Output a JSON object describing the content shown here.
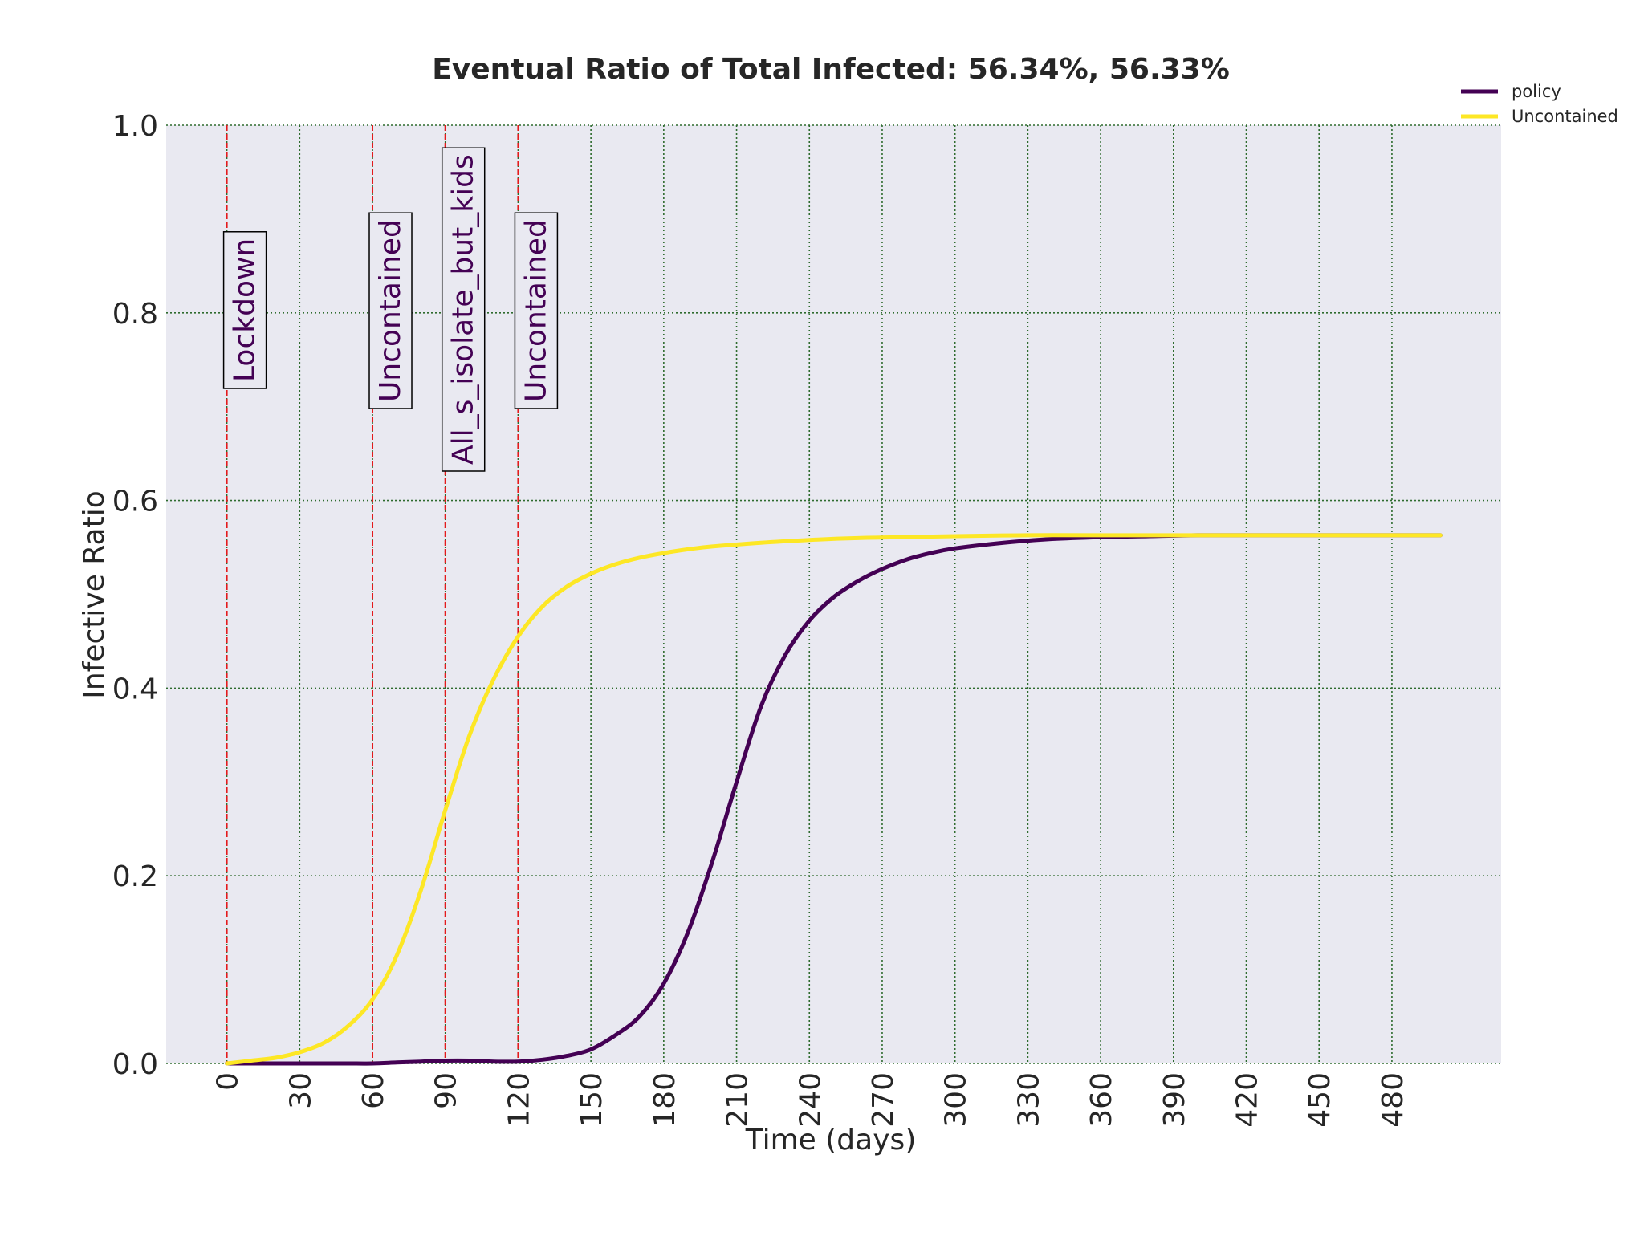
{
  "chart_data": {
    "type": "line",
    "title": "Eventual Ratio of Total Infected: 56.34%, 56.33%",
    "xlabel": "Time (days)",
    "ylabel": "Infective Ratio",
    "xlim": [
      -25,
      525
    ],
    "ylim": [
      0,
      1.0
    ],
    "x_ticks": [
      0,
      30,
      60,
      90,
      120,
      150,
      180,
      210,
      240,
      270,
      300,
      330,
      360,
      390,
      420,
      450,
      480
    ],
    "x_tick_labels": [
      "0",
      "30",
      "60",
      "90",
      "120",
      "150",
      "180",
      "210",
      "240",
      "270",
      "300",
      "330",
      "360",
      "390",
      "420",
      "450",
      "480"
    ],
    "y_ticks": [
      0.0,
      0.2,
      0.4,
      0.6,
      0.8,
      1.0
    ],
    "y_tick_labels": [
      "0.0",
      "0.2",
      "0.4",
      "0.6",
      "0.8",
      "1.0"
    ],
    "grid": true,
    "legend_position": "top-right, outside plot",
    "colors": {
      "plot_background": "#e9e9f1",
      "grid": "#2e6b2e",
      "policy_line": "#440154",
      "uncontained_line": "#fde725",
      "event_line": "#e41a1c",
      "annotation_text": "#440154"
    },
    "series": [
      {
        "name": "policy",
        "color": "#440154",
        "x": [
          0,
          10,
          20,
          30,
          40,
          50,
          60,
          70,
          80,
          90,
          100,
          110,
          120,
          130,
          140,
          150,
          160,
          170,
          180,
          190,
          200,
          210,
          220,
          230,
          240,
          250,
          260,
          270,
          280,
          290,
          300,
          320,
          340,
          360,
          380,
          400,
          420,
          450,
          480,
          500
        ],
        "y": [
          0.0,
          0.0,
          0.0,
          0.0,
          0.0,
          0.0,
          0.0,
          0.001,
          0.002,
          0.003,
          0.003,
          0.002,
          0.002,
          0.004,
          0.008,
          0.015,
          0.03,
          0.05,
          0.085,
          0.14,
          0.215,
          0.3,
          0.38,
          0.435,
          0.472,
          0.497,
          0.514,
          0.527,
          0.537,
          0.544,
          0.549,
          0.555,
          0.559,
          0.561,
          0.562,
          0.563,
          0.563,
          0.563,
          0.563,
          0.563
        ]
      },
      {
        "name": "Uncontained",
        "color": "#fde725",
        "x": [
          0,
          10,
          20,
          30,
          40,
          50,
          60,
          70,
          80,
          90,
          100,
          110,
          120,
          130,
          140,
          150,
          160,
          170,
          180,
          190,
          200,
          220,
          240,
          260,
          280,
          300,
          330,
          360,
          400,
          440,
          480,
          500
        ],
        "y": [
          0.0,
          0.003,
          0.006,
          0.012,
          0.022,
          0.04,
          0.068,
          0.115,
          0.185,
          0.27,
          0.35,
          0.41,
          0.455,
          0.487,
          0.508,
          0.522,
          0.532,
          0.539,
          0.544,
          0.548,
          0.551,
          0.555,
          0.558,
          0.56,
          0.561,
          0.562,
          0.563,
          0.563,
          0.563,
          0.563,
          0.563,
          0.563
        ]
      }
    ],
    "events": [
      {
        "x": 0,
        "label": "Lockdown"
      },
      {
        "x": 60,
        "label": "Uncontained"
      },
      {
        "x": 90,
        "label": "All_s_isolate_but_kids"
      },
      {
        "x": 120,
        "label": "Uncontained"
      }
    ]
  }
}
